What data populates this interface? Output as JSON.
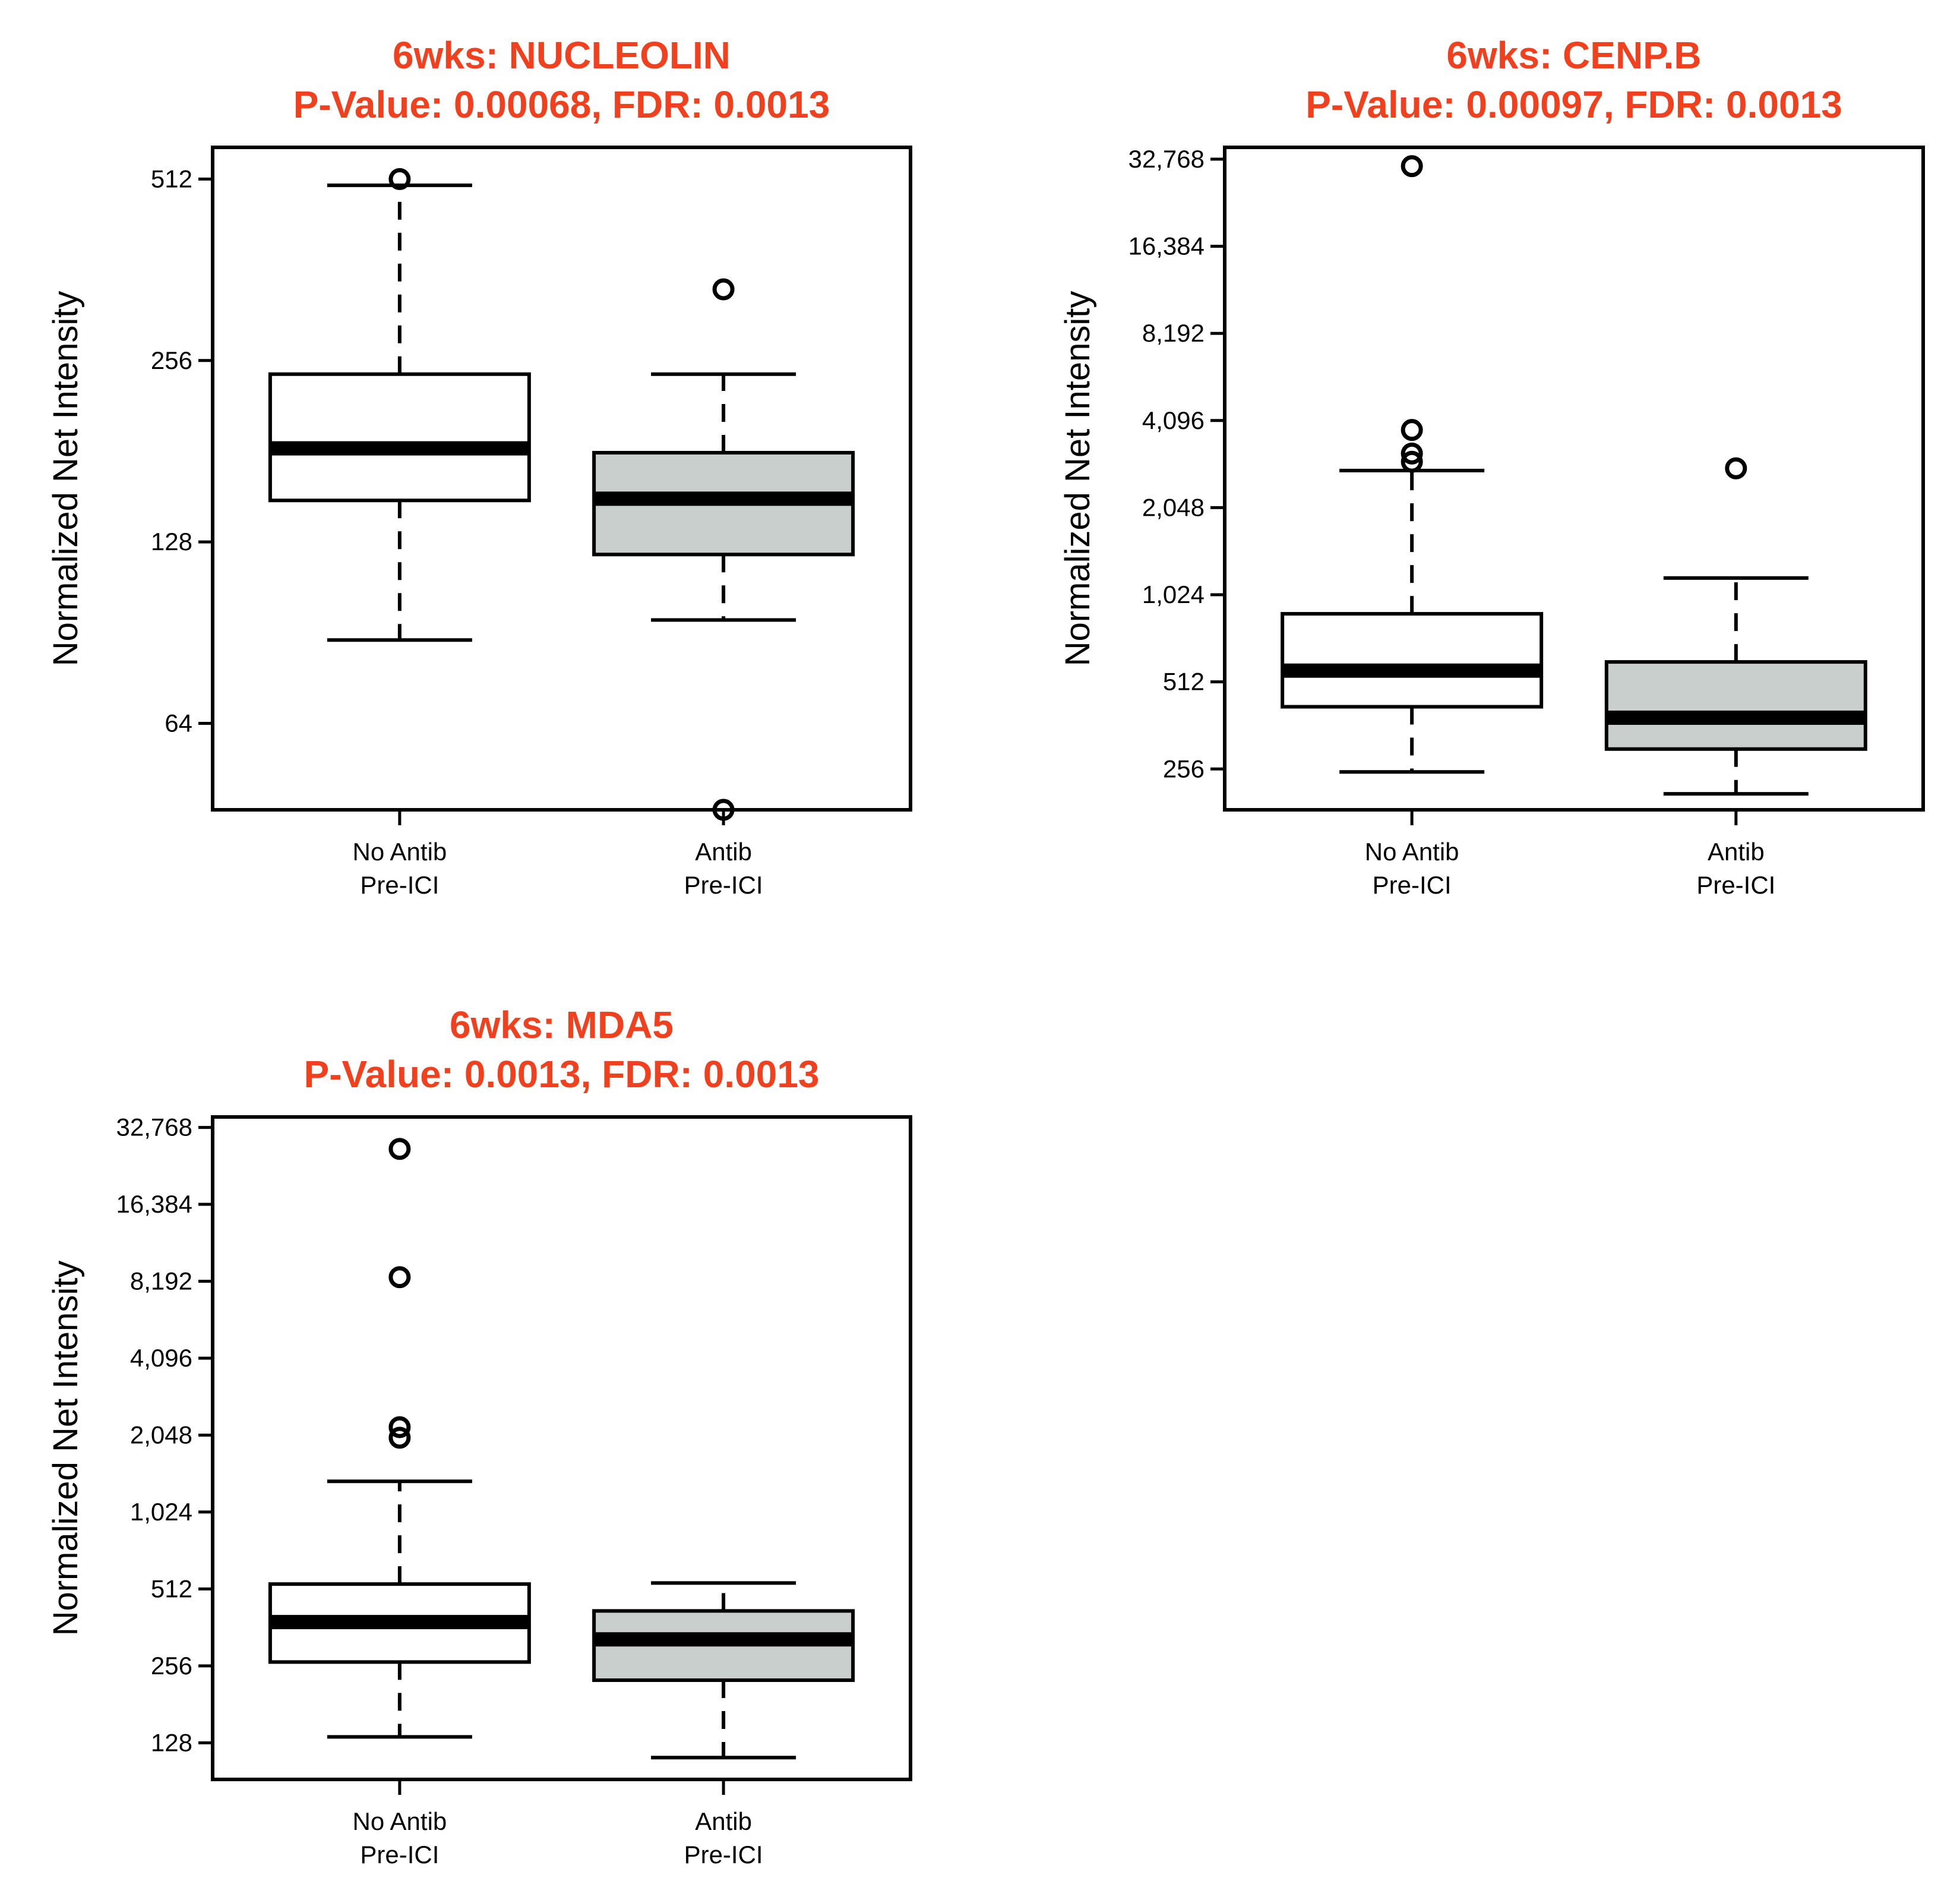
{
  "chart_data": [
    {
      "type": "boxplot",
      "title_line1": "6wks:  NUCLEOLIN",
      "title_line2": "P-Value: 0.00068, FDR: 0.0013",
      "ylabel": "Normalized Net Intensity",
      "yscale": "log2",
      "ylim": [
        46,
        578
      ],
      "yticks": [
        64,
        128,
        256,
        512
      ],
      "ytick_labels": [
        "64",
        "128",
        "256",
        "512"
      ],
      "categories": [
        "No Antib\nPre-ICI",
        "Antib\nPre-ICI"
      ],
      "category_lines": [
        [
          "No Antib",
          "Pre-ICI"
        ],
        [
          "Antib",
          "Pre-ICI"
        ]
      ],
      "box_colors": [
        "#ffffff",
        "#c8cfcc"
      ],
      "boxes": [
        {
          "whisker_low": 88,
          "q1": 150,
          "median": 183,
          "q3": 243,
          "whisker_high": 500,
          "outliers": [
            512
          ]
        },
        {
          "whisker_low": 95,
          "q1": 122,
          "median": 151,
          "q3": 180,
          "whisker_high": 243,
          "outliers": [
            336,
            46
          ]
        }
      ]
    },
    {
      "type": "boxplot",
      "title_line1": "6wks:  CENP.B",
      "title_line2": "P-Value: 0.00097, FDR: 0.0013",
      "ylabel": "Normalized Net Intensity",
      "yscale": "log2",
      "ylim": [
        185,
        36000
      ],
      "yticks": [
        256,
        512,
        1024,
        2048,
        4096,
        8192,
        16384,
        32768
      ],
      "ytick_labels": [
        "256",
        "512",
        "1,024",
        "2,048",
        "4,096",
        "8,192",
        "16,384",
        "32,768"
      ],
      "categories": [
        "No Antib\nPre-ICI",
        "Antib\nPre-ICI"
      ],
      "category_lines": [
        [
          "No Antib",
          "Pre-ICI"
        ],
        [
          "Antib",
          "Pre-ICI"
        ]
      ],
      "box_colors": [
        "#ffffff",
        "#c8cfcc"
      ],
      "boxes": [
        {
          "whisker_low": 250,
          "q1": 420,
          "median": 560,
          "q3": 880,
          "whisker_high": 2750,
          "outliers": [
            31000,
            3800,
            3150,
            2950
          ]
        },
        {
          "whisker_low": 210,
          "q1": 300,
          "median": 385,
          "q3": 600,
          "whisker_high": 1170,
          "outliers": [
            2800
          ]
        }
      ]
    },
    {
      "type": "boxplot",
      "title_line1": "6wks:  MDA5",
      "title_line2": "P-Value: 0.0013, FDR: 0.0013",
      "ylabel": "Normalized Net Intensity",
      "yscale": "log2",
      "ylim": [
        92,
        36000
      ],
      "yticks": [
        128,
        256,
        512,
        1024,
        2048,
        4096,
        8192,
        16384,
        32768
      ],
      "ytick_labels": [
        "128",
        "256",
        "512",
        "1,024",
        "2,048",
        "4,096",
        "8,192",
        "16,384",
        "32,768"
      ],
      "categories": [
        "No Antib\nPre-ICI",
        "Antib\nPre-ICI"
      ],
      "category_lines": [
        [
          "No Antib",
          "Pre-ICI"
        ],
        [
          "Antib",
          "Pre-ICI"
        ]
      ],
      "box_colors": [
        "#ffffff",
        "#c8cfcc"
      ],
      "boxes": [
        {
          "whisker_low": 135,
          "q1": 265,
          "median": 380,
          "q3": 535,
          "whisker_high": 1350,
          "outliers": [
            27000,
            8500,
            2200,
            2000
          ]
        },
        {
          "whisker_low": 112,
          "q1": 225,
          "median": 325,
          "q3": 420,
          "whisker_high": 540,
          "outliers": []
        }
      ]
    }
  ]
}
